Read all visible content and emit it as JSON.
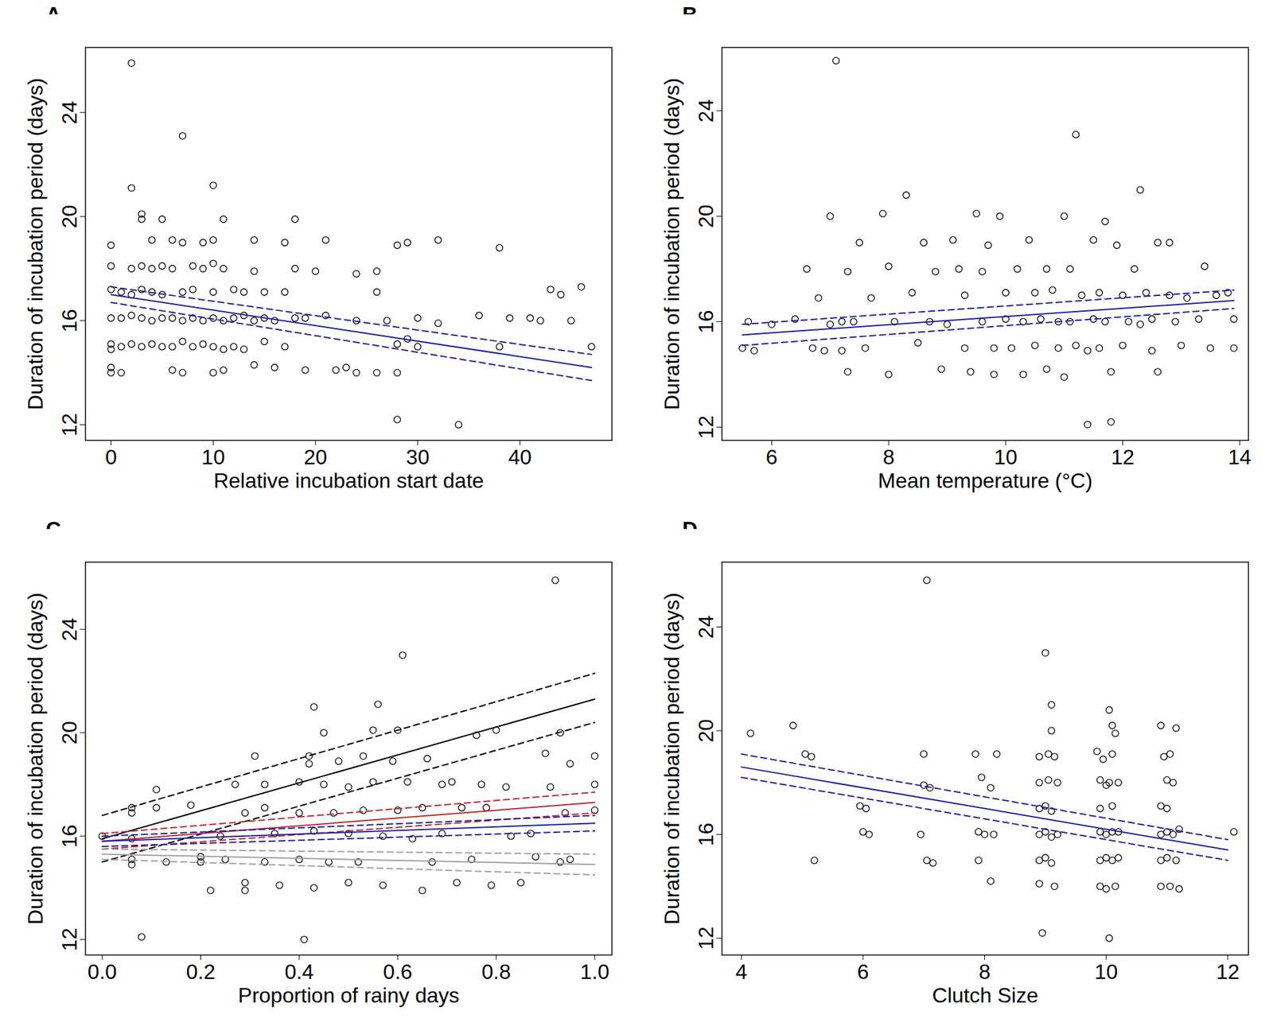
{
  "chart_data": [
    {
      "type": "scatter",
      "title": "A",
      "x_label": "Relative incubation start date",
      "y_label": "Duration of incubation period (days)",
      "xlim": [
        -2.5,
        49
      ],
      "ylim": [
        11.4,
        26.5
      ],
      "xticks": [
        0,
        10,
        20,
        30,
        40
      ],
      "yticks": [
        12,
        16,
        20,
        24
      ],
      "color": "#000000",
      "marker": "open_circle",
      "x": [
        0,
        0,
        0,
        0,
        0,
        0,
        0,
        0,
        1,
        1,
        1,
        1,
        2,
        2,
        2,
        2,
        2,
        2,
        3,
        3,
        3,
        3,
        3,
        3,
        4,
        4,
        4,
        4,
        4,
        5,
        5,
        5,
        5,
        5,
        6,
        6,
        6,
        6,
        6,
        7,
        7,
        7,
        7,
        7,
        7,
        8,
        8,
        8,
        8,
        9,
        9,
        9,
        9,
        10,
        10,
        10,
        10,
        10,
        10,
        10,
        11,
        11,
        11,
        11,
        11,
        12,
        12,
        12,
        13,
        13,
        13,
        14,
        14,
        14,
        14,
        15,
        15,
        15,
        16,
        16,
        17,
        17,
        17,
        18,
        18,
        18,
        19,
        19,
        20,
        21,
        21,
        22,
        23,
        24,
        24,
        24,
        26,
        26,
        26,
        27,
        28,
        28,
        28,
        28,
        29,
        29,
        30,
        30,
        32,
        32,
        34,
        36,
        38,
        38,
        39,
        41,
        42,
        43,
        44,
        45,
        46,
        47
      ],
      "values": [
        18.9,
        18.1,
        17.2,
        16.1,
        15.1,
        14.9,
        14.2,
        14.0,
        14.0,
        17.1,
        16.1,
        15.0,
        25.9,
        21.1,
        18.0,
        17.0,
        16.2,
        15.1,
        20.1,
        19.9,
        18.1,
        17.2,
        16.1,
        15.0,
        19.1,
        18.0,
        16.0,
        17.1,
        15.1,
        19.9,
        18.1,
        17.0,
        16.1,
        15.0,
        19.1,
        18.0,
        16.1,
        15.0,
        14.1,
        23.1,
        19.0,
        17.1,
        16.0,
        15.2,
        14.0,
        18.1,
        17.2,
        16.1,
        15.0,
        19.0,
        18.0,
        16.0,
        15.1,
        21.2,
        19.1,
        18.2,
        17.1,
        16.1,
        15.0,
        14.0,
        19.9,
        18.0,
        16.0,
        14.9,
        14.1,
        17.2,
        16.1,
        15.0,
        17.1,
        16.2,
        14.9,
        19.1,
        17.9,
        16.0,
        14.3,
        17.1,
        16.1,
        15.2,
        14.2,
        16.0,
        19.0,
        17.1,
        15.0,
        19.9,
        18.0,
        16.1,
        16.1,
        14.1,
        17.9,
        19.1,
        16.2,
        14.1,
        14.2,
        17.8,
        16.0,
        14.0,
        17.1,
        17.9,
        14.0,
        16.0,
        12.2,
        15.1,
        18.9,
        14.0,
        19.0,
        15.3,
        16.1,
        15.0,
        19.1,
        15.9,
        12.0,
        16.2,
        18.8,
        15.0,
        16.1,
        16.1,
        16.0,
        17.2,
        17.0,
        16.0,
        17.3,
        15.0
      ],
      "series": [
        {
          "type": "line",
          "color": "#1f1fa0",
          "line_style": "solid",
          "x": [
            0,
            47
          ],
          "values": [
            17.0,
            14.2
          ]
        },
        {
          "type": "line",
          "color": "#1f1fa0",
          "line_style": "dashed",
          "x": [
            0,
            47
          ],
          "values": [
            17.3,
            14.7
          ]
        },
        {
          "type": "line",
          "color": "#1f1fa0",
          "line_style": "dashed",
          "x": [
            0,
            47
          ],
          "values": [
            16.7,
            13.7
          ]
        }
      ]
    },
    {
      "type": "scatter",
      "title": "B",
      "x_label": "Mean temperature (°C)",
      "y_label": "Duration of incubation period (days)",
      "xlim": [
        5.15,
        14.15
      ],
      "ylim": [
        11.5,
        26.4
      ],
      "xticks": [
        6,
        8,
        10,
        12,
        14
      ],
      "yticks": [
        12,
        16,
        20,
        24
      ],
      "color": "#000000",
      "marker": "open_circle",
      "x": [
        5.5,
        5.6,
        5.7,
        6.0,
        6.4,
        6.6,
        6.7,
        6.8,
        6.9,
        7.0,
        7.0,
        7.1,
        7.2,
        7.2,
        7.3,
        7.3,
        7.4,
        7.5,
        7.6,
        7.7,
        7.9,
        8.0,
        8.0,
        8.1,
        8.3,
        8.4,
        8.5,
        8.6,
        8.7,
        8.8,
        8.9,
        9.0,
        9.1,
        9.2,
        9.3,
        9.3,
        9.4,
        9.5,
        9.6,
        9.6,
        9.7,
        9.8,
        9.8,
        9.9,
        10.0,
        10.0,
        10.1,
        10.2,
        10.3,
        10.3,
        10.4,
        10.5,
        10.5,
        10.6,
        10.7,
        10.7,
        10.8,
        10.9,
        10.9,
        11.0,
        11.0,
        11.1,
        11.1,
        11.2,
        11.2,
        11.3,
        11.4,
        11.4,
        11.5,
        11.5,
        11.6,
        11.6,
        11.7,
        11.7,
        11.8,
        11.8,
        11.9,
        12.0,
        12.0,
        12.1,
        12.2,
        12.3,
        12.3,
        12.4,
        12.5,
        12.5,
        12.6,
        12.6,
        12.8,
        12.8,
        12.9,
        13.0,
        13.1,
        13.3,
        13.4,
        13.5,
        13.6,
        13.8,
        13.9,
        13.9
      ],
      "values": [
        15.0,
        16.0,
        14.9,
        15.9,
        16.1,
        18.0,
        15.0,
        16.9,
        14.9,
        20.0,
        15.9,
        25.9,
        16.0,
        14.9,
        17.9,
        14.1,
        16.0,
        19.0,
        15.0,
        16.9,
        20.1,
        18.1,
        14.0,
        16.0,
        20.8,
        17.1,
        15.2,
        19.0,
        16.0,
        17.9,
        14.2,
        15.9,
        19.1,
        18.0,
        17.0,
        15.0,
        14.1,
        20.1,
        17.9,
        16.0,
        18.9,
        15.0,
        14.0,
        20.0,
        17.1,
        16.1,
        15.0,
        18.0,
        16.0,
        14.0,
        19.1,
        17.1,
        15.1,
        16.1,
        18.0,
        14.2,
        17.2,
        16.0,
        15.0,
        20.0,
        13.9,
        18.0,
        16.0,
        23.1,
        15.1,
        17.0,
        12.1,
        14.9,
        19.1,
        16.1,
        17.1,
        15.0,
        19.8,
        16.0,
        12.2,
        14.1,
        18.9,
        17.0,
        15.1,
        16.0,
        18.0,
        21.0,
        15.9,
        17.1,
        16.1,
        14.9,
        19.0,
        14.1,
        17.0,
        19.0,
        16.0,
        15.1,
        16.9,
        16.1,
        18.1,
        15.0,
        17.0,
        17.1,
        16.1,
        15.0
      ],
      "series": [
        {
          "type": "line",
          "color": "#1f1fa0",
          "line_style": "solid",
          "x": [
            5.5,
            13.9
          ],
          "values": [
            15.5,
            16.8
          ]
        },
        {
          "type": "line",
          "color": "#1f1fa0",
          "line_style": "dashed",
          "x": [
            5.5,
            13.9
          ],
          "values": [
            15.9,
            17.2
          ]
        },
        {
          "type": "line",
          "color": "#1f1fa0",
          "line_style": "dashed",
          "x": [
            5.5,
            13.9
          ],
          "values": [
            15.1,
            16.5
          ]
        }
      ]
    },
    {
      "type": "scatter",
      "title": "C",
      "x_label": "Proportion of rainy days",
      "y_label": "Duration of incubation period (days)",
      "xlim": [
        -0.034,
        1.035
      ],
      "ylim": [
        11.4,
        26.6
      ],
      "xticks": [
        {
          "value": 0,
          "label": "0.0"
        },
        0.2,
        0.4,
        0.6,
        0.8,
        {
          "value": 1,
          "label": "1.0"
        }
      ],
      "yticks": [
        12,
        16,
        20,
        24
      ],
      "color": "#000000",
      "marker": "open_circle",
      "x": [
        0,
        0.06,
        0.06,
        0.06,
        0.06,
        0.06,
        0.08,
        0.11,
        0.11,
        0.13,
        0.18,
        0.2,
        0.2,
        0.22,
        0.24,
        0.25,
        0.27,
        0.29,
        0.29,
        0.29,
        0.31,
        0.33,
        0.33,
        0.33,
        0.35,
        0.36,
        0.4,
        0.4,
        0.4,
        0.41,
        0.42,
        0.42,
        0.43,
        0.43,
        0.43,
        0.45,
        0.45,
        0.46,
        0.47,
        0.48,
        0.5,
        0.5,
        0.5,
        0.52,
        0.53,
        0.53,
        0.55,
        0.55,
        0.56,
        0.57,
        0.57,
        0.59,
        0.6,
        0.6,
        0.61,
        0.62,
        0.63,
        0.65,
        0.65,
        0.66,
        0.67,
        0.69,
        0.69,
        0.71,
        0.72,
        0.73,
        0.75,
        0.76,
        0.77,
        0.78,
        0.79,
        0.8,
        0.82,
        0.83,
        0.85,
        0.87,
        0.88,
        0.9,
        0.91,
        0.92,
        0.93,
        0.93,
        0.94,
        0.95,
        0.95,
        1.0,
        1.0,
        1.0
      ],
      "values": [
        16.0,
        17.1,
        16.9,
        15.9,
        15.1,
        14.9,
        12.1,
        17.8,
        17.1,
        15.0,
        17.2,
        15.2,
        15.0,
        13.9,
        16.0,
        15.1,
        18.0,
        14.2,
        13.9,
        16.9,
        19.1,
        18.0,
        17.1,
        15.0,
        16.1,
        14.1,
        18.1,
        16.9,
        15.1,
        12.0,
        18.8,
        19.1,
        21.0,
        16.2,
        14.0,
        20.0,
        18.0,
        15.0,
        16.9,
        18.9,
        17.9,
        16.1,
        14.2,
        15.0,
        19.1,
        17.0,
        20.1,
        18.1,
        21.1,
        16.0,
        14.1,
        18.9,
        20.1,
        17.0,
        23.0,
        18.1,
        15.9,
        13.9,
        17.1,
        19.0,
        15.0,
        18.0,
        16.1,
        18.1,
        14.2,
        17.1,
        15.1,
        19.9,
        18.0,
        17.1,
        14.1,
        20.1,
        17.9,
        16.0,
        14.2,
        16.1,
        15.2,
        19.2,
        17.9,
        25.9,
        20.0,
        15.0,
        16.9,
        18.8,
        15.1,
        19.1,
        18.0,
        17.0
      ],
      "series": [
        {
          "type": "line",
          "color": "#000000",
          "line_style": "solid",
          "x": [
            0,
            1
          ],
          "values": [
            15.9,
            21.3
          ]
        },
        {
          "type": "line",
          "color": "#000000",
          "line_style": "dashed",
          "x": [
            0,
            1
          ],
          "values": [
            16.8,
            22.3
          ]
        },
        {
          "type": "line",
          "color": "#000000",
          "line_style": "dashed",
          "x": [
            0,
            1
          ],
          "values": [
            15.0,
            20.4
          ]
        },
        {
          "type": "line",
          "color": "#c0282d",
          "line_style": "solid",
          "x": [
            0,
            1
          ],
          "values": [
            15.8,
            17.3
          ]
        },
        {
          "type": "line",
          "color": "#c0282d",
          "line_style": "dashed",
          "x": [
            0,
            1
          ],
          "values": [
            16.1,
            17.7
          ]
        },
        {
          "type": "line",
          "color": "#c0282d",
          "line_style": "dashed",
          "x": [
            0,
            1
          ],
          "values": [
            15.5,
            16.9
          ]
        },
        {
          "type": "line",
          "color": "#1f1fa0",
          "line_style": "solid",
          "x": [
            0,
            1
          ],
          "values": [
            15.8,
            16.5
          ]
        },
        {
          "type": "line",
          "color": "#1f1fa0",
          "line_style": "dashed",
          "x": [
            0,
            1
          ],
          "values": [
            16.0,
            16.8
          ]
        },
        {
          "type": "line",
          "color": "#1f1fa0",
          "line_style": "dashed",
          "x": [
            0,
            1
          ],
          "values": [
            15.6,
            16.2
          ]
        },
        {
          "type": "line",
          "color": "#a0a0a0",
          "line_style": "solid",
          "x": [
            0,
            1
          ],
          "values": [
            15.3,
            14.9
          ]
        },
        {
          "type": "line",
          "color": "#a0a0a0",
          "line_style": "dashed",
          "x": [
            0,
            1
          ],
          "values": [
            15.5,
            15.3
          ]
        },
        {
          "type": "line",
          "color": "#a0a0a0",
          "line_style": "dashed",
          "x": [
            0,
            1
          ],
          "values": [
            15.1,
            14.5
          ]
        }
      ]
    },
    {
      "type": "scatter",
      "title": "D",
      "x_label": "Clutch Size",
      "y_label": "Duration of incubation period (days)",
      "xlim": [
        3.68,
        12.34
      ],
      "ylim": [
        11.35,
        26.5
      ],
      "xticks": [
        4,
        6,
        8,
        10,
        12
      ],
      "yticks": [
        12,
        16,
        20,
        24
      ],
      "color": "#000000",
      "marker": "open_circle",
      "x": [
        4.15,
        4.85,
        5.05,
        5.15,
        5.2,
        5.95,
        6.0,
        6.05,
        6.1,
        6.95,
        7.0,
        7.0,
        7.05,
        7.05,
        7.1,
        7.15,
        7.85,
        7.9,
        7.9,
        7.95,
        8.0,
        8.1,
        8.1,
        8.15,
        8.2,
        8.9,
        8.9,
        8.9,
        8.9,
        8.9,
        8.9,
        8.95,
        9.0,
        9.0,
        9.0,
        9.0,
        9.05,
        9.05,
        9.1,
        9.1,
        9.1,
        9.1,
        9.1,
        9.15,
        9.15,
        9.2,
        9.2,
        9.85,
        9.9,
        9.9,
        9.9,
        9.9,
        9.9,
        9.95,
        10.0,
        10.0,
        10.0,
        10.0,
        10.05,
        10.05,
        10.05,
        10.1,
        10.1,
        10.1,
        10.1,
        10.1,
        10.15,
        10.15,
        10.2,
        10.2,
        10.2,
        10.9,
        10.9,
        10.9,
        10.9,
        10.9,
        10.95,
        11.0,
        11.0,
        11.0,
        11.0,
        11.05,
        11.05,
        11.1,
        11.1,
        11.15,
        11.15,
        11.2,
        11.2,
        12.1
      ],
      "values": [
        19.9,
        20.2,
        19.1,
        19.0,
        15.0,
        17.1,
        16.1,
        17.0,
        16.0,
        16.0,
        19.1,
        17.9,
        15.0,
        25.8,
        17.8,
        14.9,
        19.1,
        16.1,
        15.0,
        18.2,
        16.0,
        17.8,
        14.2,
        16.0,
        19.1,
        19.0,
        18.0,
        17.0,
        16.0,
        15.0,
        14.1,
        12.2,
        17.1,
        16.1,
        15.1,
        23.0,
        19.1,
        18.1,
        21.0,
        20.0,
        16.9,
        15.9,
        14.9,
        19.0,
        14.0,
        18.0,
        16.0,
        19.2,
        18.1,
        17.0,
        16.1,
        15.0,
        14.0,
        18.9,
        17.9,
        16.0,
        15.1,
        13.9,
        12.0,
        20.8,
        18.0,
        20.2,
        19.1,
        17.1,
        16.1,
        15.0,
        19.9,
        14.0,
        18.0,
        16.1,
        15.1,
        20.2,
        17.1,
        16.0,
        15.0,
        14.0,
        19.0,
        18.1,
        17.0,
        16.1,
        15.1,
        19.1,
        14.0,
        18.0,
        16.0,
        20.1,
        15.0,
        16.2,
        13.9,
        16.1
      ],
      "series": [
        {
          "type": "line",
          "color": "#1f1fa0",
          "line_style": "solid",
          "x": [
            4,
            12
          ],
          "values": [
            18.6,
            15.4
          ]
        },
        {
          "type": "line",
          "color": "#1f1fa0",
          "line_style": "dashed",
          "x": [
            4,
            12
          ],
          "values": [
            19.1,
            15.8
          ]
        },
        {
          "type": "line",
          "color": "#1f1fa0",
          "line_style": "dashed",
          "x": [
            4,
            12
          ],
          "values": [
            18.2,
            15.0
          ]
        }
      ]
    }
  ]
}
